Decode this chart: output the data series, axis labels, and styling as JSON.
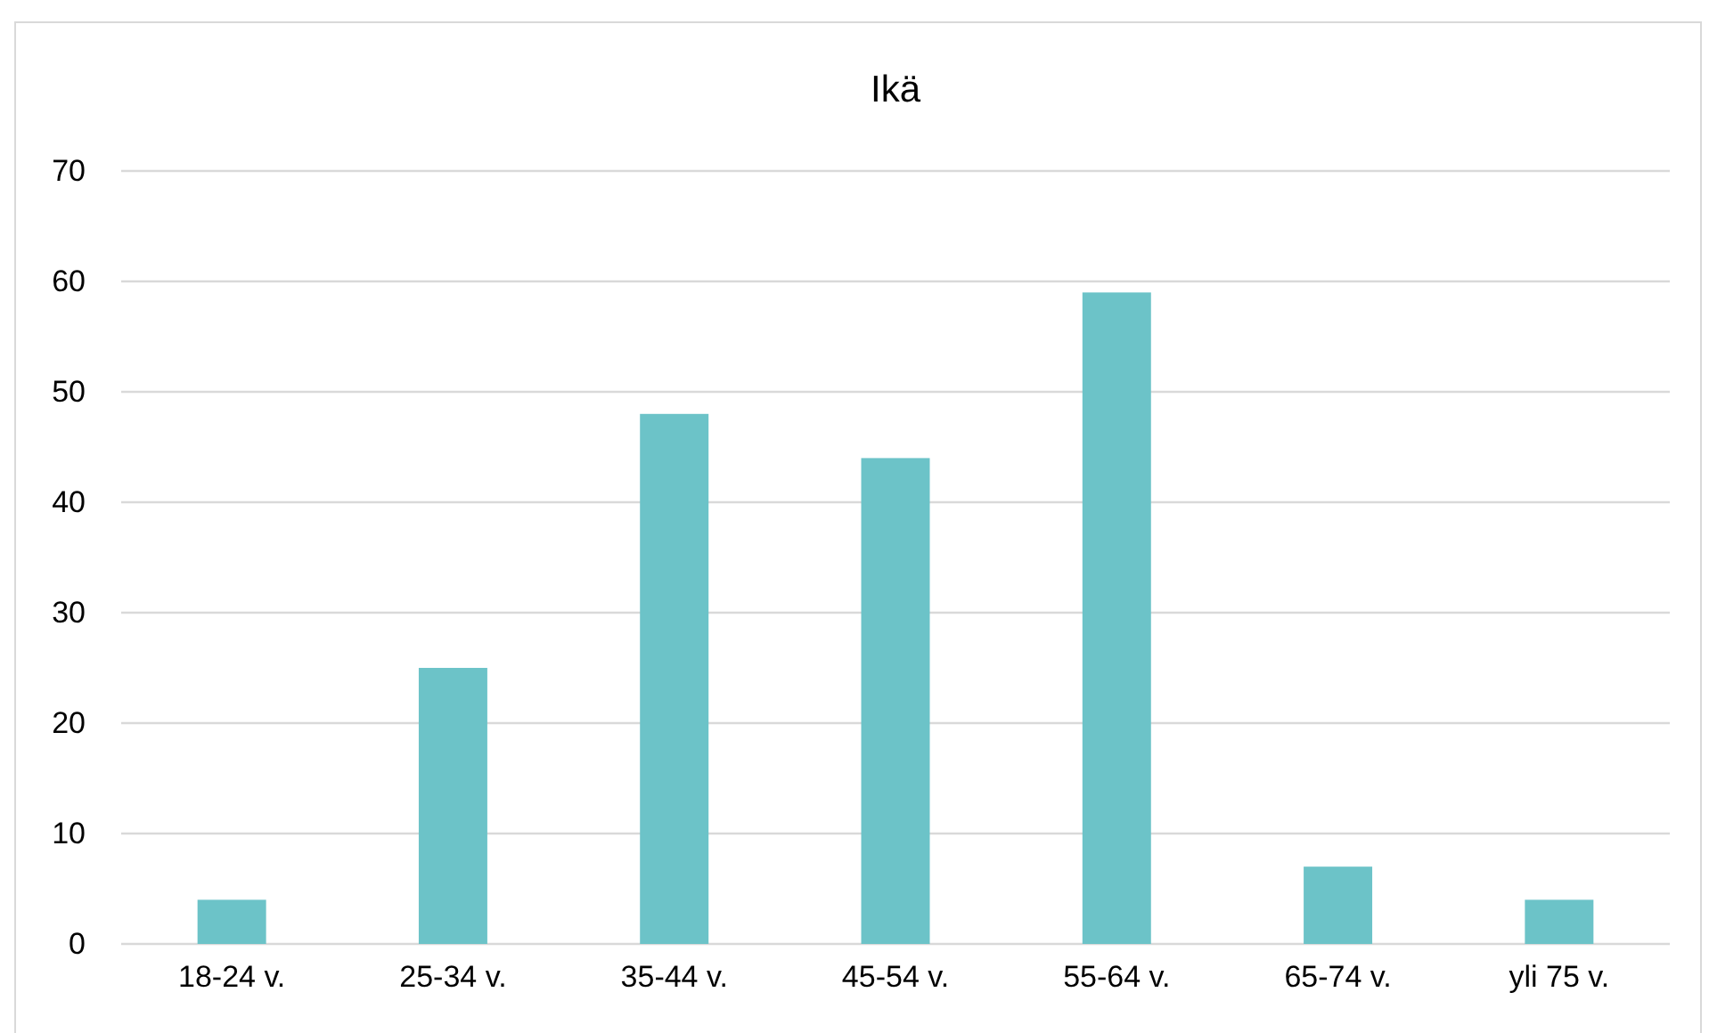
{
  "chart_data": {
    "type": "bar",
    "title": "Ikä",
    "categories": [
      "18-24 v.",
      "25-34 v.",
      "35-44 v.",
      "45-54 v.",
      "55-64 v.",
      "65-74 v.",
      "yli 75 v."
    ],
    "values": [
      4,
      25,
      48,
      44,
      59,
      7,
      4
    ],
    "color": "#6cc3c8",
    "ylim": [
      0,
      70
    ],
    "yticks": [
      0,
      10,
      20,
      30,
      40,
      50,
      60,
      70
    ],
    "grid": "y"
  }
}
